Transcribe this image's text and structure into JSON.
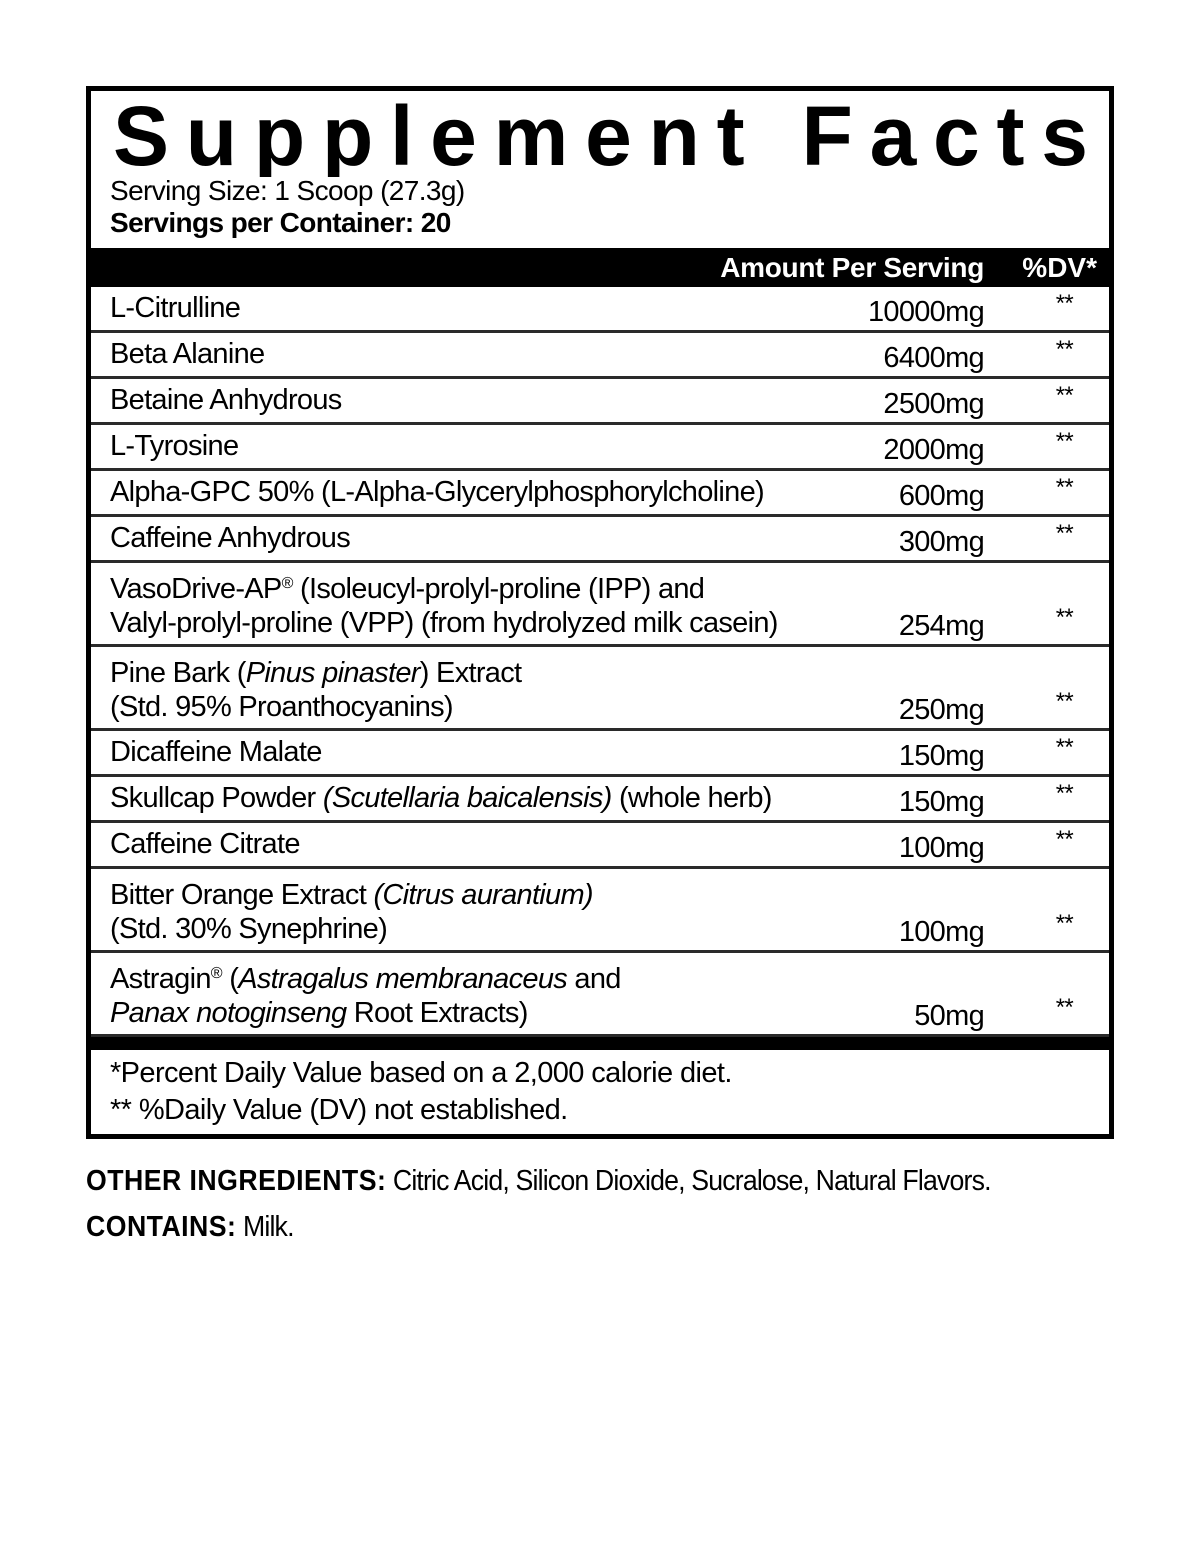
{
  "title": "Supplement Facts",
  "serving_size": "Serving Size: 1 Scoop  (27.3g)",
  "servings_per_container": "Servings per Container: 20",
  "header": {
    "amount": "Amount Per Serving",
    "dv": "%DV*"
  },
  "rows": [
    {
      "name": [
        {
          "text": "L-Citrulline"
        }
      ],
      "amount": "10000mg",
      "dv": "**"
    },
    {
      "name": [
        {
          "text": "Beta Alanine"
        }
      ],
      "amount": "6400mg",
      "dv": "**"
    },
    {
      "name": [
        {
          "text": "Betaine Anhydrous"
        }
      ],
      "amount": "2500mg",
      "dv": "**"
    },
    {
      "name": [
        {
          "text": "L-Tyrosine"
        }
      ],
      "amount": "2000mg",
      "dv": "**"
    },
    {
      "name": [
        {
          "text": "Alpha-GPC 50% (L-Alpha-Glycerylphosphorylcholine)"
        }
      ],
      "amount": "600mg",
      "dv": "**"
    },
    {
      "name": [
        {
          "text": "Caffeine Anhydrous"
        }
      ],
      "amount": "300mg",
      "dv": "**"
    },
    {
      "double": true,
      "name": [
        {
          "text": "VasoDrive-AP"
        },
        {
          "text": "®",
          "sup": true
        },
        {
          "text": " (Isoleucyl-prolyl-proline (IPP) and"
        },
        {
          "br": true
        },
        {
          "text": "Valyl-prolyl-proline (VPP) (from hydrolyzed milk casein)"
        }
      ],
      "amount": "254mg",
      "dv": "**"
    },
    {
      "double": true,
      "name": [
        {
          "text": "Pine Bark ("
        },
        {
          "text": "Pinus pinaster",
          "italic": true
        },
        {
          "text": ") Extract"
        },
        {
          "br": true
        },
        {
          "text": "(Std. 95% Proanthocyanins)"
        }
      ],
      "amount": "250mg",
      "dv": "**"
    },
    {
      "name": [
        {
          "text": "Dicaffeine Malate"
        }
      ],
      "amount": "150mg",
      "dv": "**"
    },
    {
      "name": [
        {
          "text": "Skullcap Powder "
        },
        {
          "text": "(Scutellaria baicalensis)",
          "italic": true
        },
        {
          "text": " (whole herb)"
        }
      ],
      "amount": "150mg",
      "dv": "**"
    },
    {
      "name": [
        {
          "text": "Caffeine Citrate"
        }
      ],
      "amount": "100mg",
      "dv": "**"
    },
    {
      "double": true,
      "name": [
        {
          "text": "Bitter Orange Extract "
        },
        {
          "text": "(Citrus aurantium)",
          "italic": true
        },
        {
          "br": true
        },
        {
          "text": "(Std. 30% Synephrine)"
        }
      ],
      "amount": "100mg",
      "dv": "**"
    },
    {
      "double": true,
      "name": [
        {
          "text": "Astragin"
        },
        {
          "text": "®",
          "sup": true
        },
        {
          "text": " ("
        },
        {
          "text": "Astragalus membranaceus",
          "italic": true
        },
        {
          "text": " and"
        },
        {
          "br": true
        },
        {
          "text": "Panax notoginseng",
          "italic": true
        },
        {
          "text": " Root Extracts)"
        }
      ],
      "amount": "50mg",
      "dv": "**"
    }
  ],
  "footnotes": [
    "*Percent Daily Value based on a 2,000 calorie diet.",
    "** %Daily Value (DV) not established."
  ],
  "other_ingredients": {
    "label": "OTHER INGREDIENTS:",
    "text": " Citric Acid, Silicon Dioxide, Sucralose, Natural Flavors."
  },
  "contains": {
    "label": "CONTAINS:",
    "text": " Milk."
  }
}
